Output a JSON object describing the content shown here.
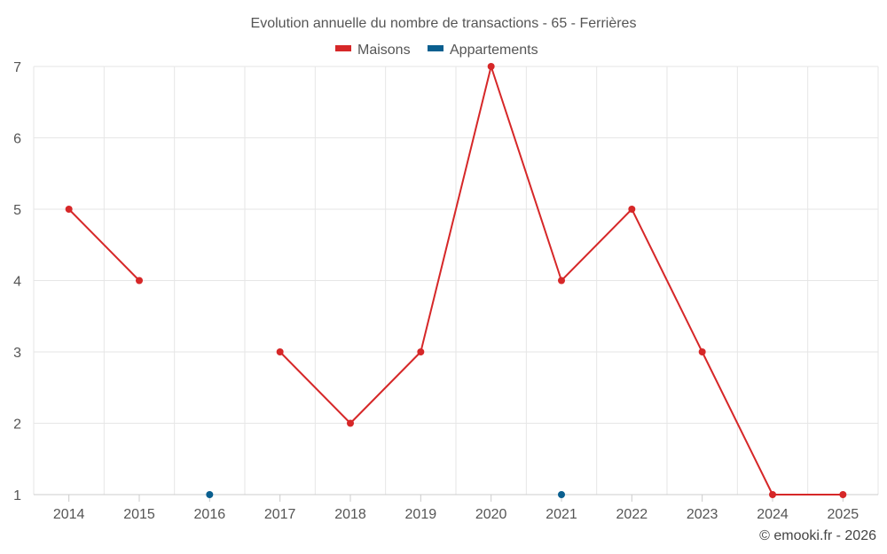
{
  "chart_data": {
    "type": "line",
    "title": "Evolution annuelle du nombre de transactions - 65 - Ferrières",
    "x": [
      "2014",
      "2015",
      "2016",
      "2017",
      "2018",
      "2019",
      "2020",
      "2021",
      "2022",
      "2023",
      "2024",
      "2025"
    ],
    "y_ticks": [
      "1",
      "2",
      "3",
      "4",
      "5",
      "6",
      "7"
    ],
    "ylim": [
      1,
      7
    ],
    "grid": true,
    "legend_position": "top-center",
    "series": [
      {
        "name": "Maisons",
        "color": "#d62728",
        "values": [
          5,
          4,
          null,
          3,
          2,
          3,
          7,
          4,
          5,
          3,
          1,
          1
        ]
      },
      {
        "name": "Appartements",
        "color": "#0a5f8f",
        "values": [
          null,
          null,
          1,
          null,
          null,
          null,
          null,
          1,
          null,
          null,
          null,
          null
        ]
      }
    ]
  },
  "credit": "© emooki.fr - 2026"
}
